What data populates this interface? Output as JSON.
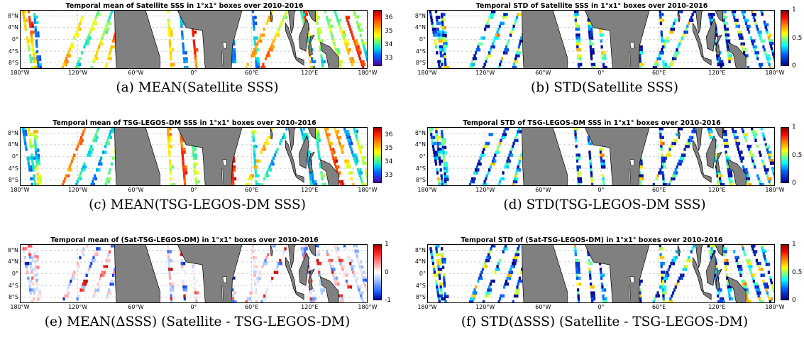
{
  "panels": [
    {
      "id": "a",
      "title": "Temporal mean of Satellite SSS in 1°x1° boxes over 2010-2016",
      "caption": "(a) MEAN(Satellite SSS)",
      "colorbar": {
        "scheme": "sss",
        "ticks": [
          "36",
          "35",
          "34",
          "33"
        ],
        "tick_values": [
          36,
          35,
          34,
          33
        ],
        "range": [
          32.4,
          36.6
        ]
      }
    },
    {
      "id": "b",
      "title": "Temporal STD of Satellite SSS in 1°x1° boxes over 2010-2016",
      "caption": "(b) STD(Satellite SSS)",
      "colorbar": {
        "scheme": "std",
        "ticks": [
          "1",
          "0.5",
          "0"
        ],
        "tick_values": [
          1,
          0.5,
          0
        ],
        "range": [
          0,
          1
        ]
      }
    },
    {
      "id": "c",
      "title": "Temporal mean of TSG-LEGOS-DM SSS in 1°x1° boxes over 2010-2016",
      "caption": "(c) MEAN(TSG-LEGOS-DM SSS)",
      "colorbar": {
        "scheme": "sss",
        "ticks": [
          "36",
          "35",
          "34",
          "33"
        ],
        "tick_values": [
          36,
          35,
          34,
          33
        ],
        "range": [
          32.4,
          36.6
        ]
      }
    },
    {
      "id": "d",
      "title": "Temporal STD of TSG-LEGOS-DM SSS in 1°x1° boxes over 2010-2016",
      "caption": "(d) STD(TSG-LEGOS-DM SSS)",
      "colorbar": {
        "scheme": "std",
        "ticks": [
          "1",
          "0.5",
          "0"
        ],
        "tick_values": [
          1,
          0.5,
          0
        ],
        "range": [
          0,
          1
        ]
      }
    },
    {
      "id": "e",
      "title": "Temporal mean of (Sat-TSG-LEGOS-DM) in 1°x1° boxes over 2010-2016",
      "caption": "(e) MEAN(ΔSSS) (Satellite - TSG-LEGOS-DM)",
      "colorbar": {
        "scheme": "diff",
        "ticks": [
          "1",
          "0",
          "-1"
        ],
        "tick_values": [
          1,
          0,
          -1
        ],
        "range": [
          -1,
          1
        ]
      }
    },
    {
      "id": "f",
      "title": "Temporal STD of (Sat-TSG-LEGOS-DM) in 1°x1° boxes over 2010-2016",
      "caption": "(f) STD(ΔSSS) (Satellite - TSG-LEGOS-DM)",
      "colorbar": {
        "scheme": "std",
        "ticks": [
          "1",
          "0.5",
          "0"
        ],
        "tick_values": [
          1,
          0.5,
          0
        ],
        "range": [
          0,
          1
        ]
      }
    }
  ],
  "axes": {
    "lat_labels": [
      "8°N",
      "4°N",
      "0°",
      "4°S",
      "8°S"
    ],
    "lat_values": [
      8,
      4,
      0,
      -4,
      -8
    ],
    "lat_range": [
      -10,
      10
    ],
    "lon_labels": [
      "180°W",
      "120°W",
      "60°W",
      "0°",
      "60°E",
      "120°E",
      "180°W"
    ],
    "lon_values": [
      -180,
      -120,
      -60,
      0,
      60,
      120,
      180
    ],
    "lon_range": [
      -180,
      180
    ]
  },
  "colors": {
    "land": "#808080",
    "grid": "#b0b0b0"
  }
}
